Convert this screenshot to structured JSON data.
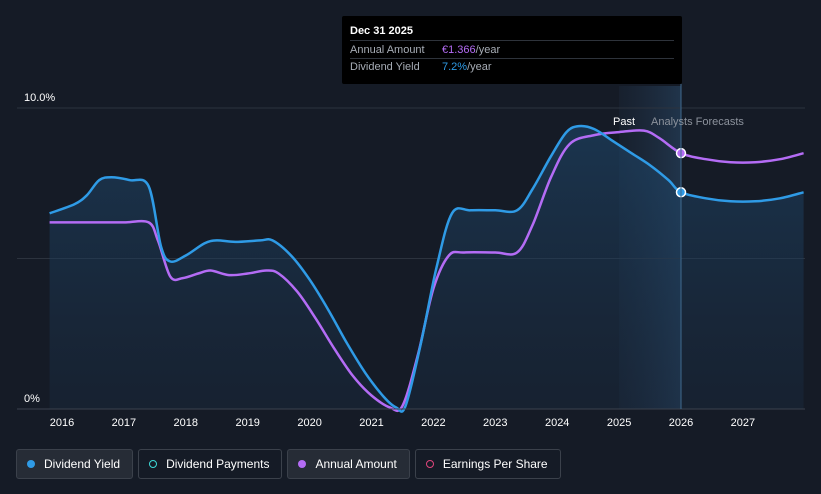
{
  "chart_data": {
    "type": "line",
    "y_axis": {
      "top_label": "10.0%",
      "bottom_label": "0%",
      "range": [
        0,
        10
      ]
    },
    "x_ticks": [
      "2016",
      "2017",
      "2018",
      "2019",
      "2020",
      "2021",
      "2022",
      "2023",
      "2024",
      "2025",
      "2026",
      "2027"
    ],
    "regions": {
      "past_label": "Past",
      "forecast_label": "Analysts Forecasts"
    },
    "grid": true,
    "series": [
      {
        "name": "Dividend Yield",
        "color": "#2f9be6",
        "points": [
          [
            2015.8,
            6.5
          ],
          [
            2016.2,
            6.8
          ],
          [
            2016.4,
            7.1
          ],
          [
            2016.6,
            7.6
          ],
          [
            2016.8,
            7.7
          ],
          [
            2017.1,
            7.6
          ],
          [
            2017.4,
            7.4
          ],
          [
            2017.6,
            5.4
          ],
          [
            2017.75,
            4.9
          ],
          [
            2018.0,
            5.1
          ],
          [
            2018.3,
            5.5
          ],
          [
            2018.5,
            5.6
          ],
          [
            2018.8,
            5.55
          ],
          [
            2019.2,
            5.6
          ],
          [
            2019.4,
            5.6
          ],
          [
            2019.7,
            5.1
          ],
          [
            2020.0,
            4.3
          ],
          [
            2020.3,
            3.3
          ],
          [
            2020.6,
            2.2
          ],
          [
            2020.9,
            1.2
          ],
          [
            2021.2,
            0.4
          ],
          [
            2021.4,
            0.05
          ],
          [
            2021.55,
            0.1
          ],
          [
            2021.8,
            2.2
          ],
          [
            2022.05,
            4.7
          ],
          [
            2022.3,
            6.5
          ],
          [
            2022.6,
            6.6
          ],
          [
            2023.0,
            6.6
          ],
          [
            2023.35,
            6.6
          ],
          [
            2023.6,
            7.3
          ],
          [
            2023.9,
            8.4
          ],
          [
            2024.15,
            9.2
          ],
          [
            2024.35,
            9.4
          ],
          [
            2024.6,
            9.3
          ],
          [
            2024.9,
            8.9
          ],
          [
            2025.2,
            8.5
          ],
          [
            2025.5,
            8.1
          ],
          [
            2025.8,
            7.6
          ],
          [
            2026.0,
            7.2
          ],
          [
            2026.4,
            7.0
          ],
          [
            2026.8,
            6.9
          ],
          [
            2027.2,
            6.9
          ],
          [
            2027.6,
            7.0
          ],
          [
            2027.98,
            7.2
          ]
        ],
        "highlight": [
          2026.0,
          7.2
        ]
      },
      {
        "name": "Annual Amount",
        "color": "#b46cf5",
        "points": [
          [
            2015.8,
            6.2
          ],
          [
            2016.2,
            6.2
          ],
          [
            2016.6,
            6.2
          ],
          [
            2017.0,
            6.2
          ],
          [
            2017.4,
            6.2
          ],
          [
            2017.55,
            5.6
          ],
          [
            2017.75,
            4.4
          ],
          [
            2017.95,
            4.35
          ],
          [
            2018.2,
            4.5
          ],
          [
            2018.4,
            4.6
          ],
          [
            2018.7,
            4.45
          ],
          [
            2019.0,
            4.5
          ],
          [
            2019.3,
            4.6
          ],
          [
            2019.5,
            4.5
          ],
          [
            2019.8,
            3.9
          ],
          [
            2020.1,
            3.0
          ],
          [
            2020.4,
            2.0
          ],
          [
            2020.7,
            1.1
          ],
          [
            2021.0,
            0.45
          ],
          [
            2021.3,
            0.05
          ],
          [
            2021.5,
            0.1
          ],
          [
            2021.75,
            1.8
          ],
          [
            2022.0,
            4.0
          ],
          [
            2022.25,
            5.1
          ],
          [
            2022.5,
            5.2
          ],
          [
            2023.0,
            5.2
          ],
          [
            2023.35,
            5.2
          ],
          [
            2023.6,
            6.1
          ],
          [
            2023.9,
            7.7
          ],
          [
            2024.2,
            8.8
          ],
          [
            2024.6,
            9.1
          ],
          [
            2025.0,
            9.2
          ],
          [
            2025.4,
            9.25
          ],
          [
            2025.65,
            9.0
          ],
          [
            2026.0,
            8.5
          ],
          [
            2026.4,
            8.3
          ],
          [
            2026.8,
            8.2
          ],
          [
            2027.2,
            8.2
          ],
          [
            2027.6,
            8.3
          ],
          [
            2027.98,
            8.5
          ]
        ],
        "highlight": [
          2026.0,
          8.5
        ]
      }
    ]
  },
  "tooltip": {
    "date": "Dec 31 2025",
    "rows": [
      {
        "label": "Annual Amount",
        "value": "€1.366",
        "suffix": "/year"
      },
      {
        "label": "Dividend Yield",
        "value": "7.2%",
        "suffix": "/year"
      }
    ]
  },
  "legend": [
    {
      "label": "Dividend Yield",
      "color": "#2f9be6",
      "filled": true,
      "active": true
    },
    {
      "label": "Dividend Payments",
      "color": "#3ddbd9",
      "filled": false,
      "active": false
    },
    {
      "label": "Annual Amount",
      "color": "#b46cf5",
      "filled": true,
      "active": true
    },
    {
      "label": "Earnings Per Share",
      "color": "#e0467c",
      "filled": false,
      "active": false
    }
  ]
}
